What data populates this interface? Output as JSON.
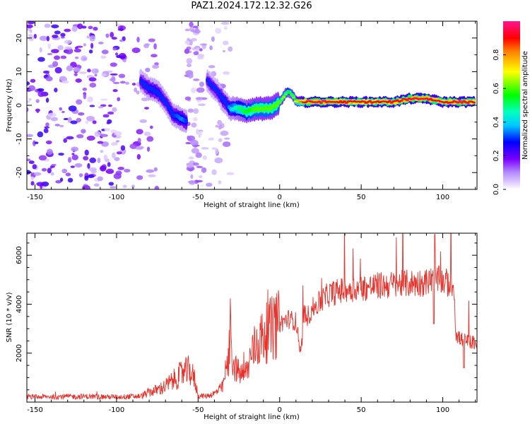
{
  "title": "PAZ1.2024.172.12.32.G26",
  "chart_data": [
    {
      "type": "heatmap",
      "xlabel": "Height of straight line (km)",
      "ylabel": "Frequency (Hz)",
      "xlim": [
        -155,
        121
      ],
      "ylim": [
        -25,
        25
      ],
      "xticks": [
        -150,
        -100,
        -50,
        0,
        50,
        100
      ],
      "yticks": [
        -20,
        -10,
        0,
        10,
        20
      ],
      "colorbar": {
        "label": "Normalized spectral amplitude",
        "ticks": [
          0.0,
          0.2,
          0.4,
          0.6,
          0.8
        ],
        "range": [
          0,
          1
        ],
        "colormap": [
          "#e8d8ff",
          "#7a00ff",
          "#0000ff",
          "#00ffff",
          "#00ff00",
          "#ffff00",
          "#ff0000",
          "#ff1493"
        ]
      },
      "ridge": {
        "x": [
          -85,
          -80,
          -75,
          -70,
          -65,
          -60,
          -57,
          -45,
          -42,
          -38,
          -35,
          -32,
          -30,
          -27,
          -25,
          -20,
          -15,
          -10,
          -5,
          0,
          3,
          5,
          8,
          10,
          15,
          20,
          30,
          40,
          50,
          60,
          70,
          80,
          90,
          100,
          110,
          120
        ],
        "y": [
          7,
          5,
          4,
          1,
          -3,
          -4,
          -5,
          8,
          6,
          4,
          2,
          0,
          -1,
          -1,
          -1,
          -2,
          -1,
          -1,
          -1,
          1,
          3,
          4,
          3,
          1,
          1,
          1,
          1,
          1,
          1,
          1,
          1,
          2,
          2,
          1,
          1,
          1
        ],
        "amplitude": [
          0.25,
          0.3,
          0.3,
          0.25,
          0.3,
          0.35,
          0.3,
          0.2,
          0.25,
          0.25,
          0.3,
          0.3,
          0.4,
          0.45,
          0.5,
          0.55,
          0.6,
          0.6,
          0.6,
          0.6,
          0.65,
          0.55,
          0.6,
          0.7,
          0.9,
          0.95,
          0.95,
          0.9,
          0.9,
          0.9,
          0.9,
          0.95,
          0.95,
          0.9,
          0.95,
          0.9
        ]
      }
    },
    {
      "type": "line",
      "xlabel": "Height of straight line (km)",
      "ylabel": "SNR (10 * v/v)",
      "xlim": [
        -155,
        121
      ],
      "ylim": [
        0,
        6900
      ],
      "xticks": [
        -150,
        -100,
        -50,
        0,
        50,
        100
      ],
      "yticks": [
        2000,
        4000,
        6000
      ],
      "series": [
        {
          "color": "#e8312a",
          "x": [
            -155,
            -140,
            -120,
            -100,
            -85,
            -80,
            -75,
            -70,
            -65,
            -60,
            -55,
            -52,
            -50,
            -45,
            -40,
            -35,
            -33,
            -31,
            -30,
            -29,
            -28,
            -27,
            -25,
            -22,
            -20,
            -18,
            -15,
            -10,
            -5,
            0,
            5,
            10,
            13,
            15,
            17,
            20,
            25,
            30,
            40,
            50,
            60,
            70,
            80,
            90,
            95,
            100,
            105,
            107,
            108,
            110,
            115,
            121
          ],
          "y": [
            200,
            220,
            230,
            210,
            240,
            400,
            500,
            650,
            900,
            1150,
            1300,
            900,
            250,
            250,
            350,
            600,
            1300,
            1700,
            3500,
            1800,
            1500,
            1400,
            1200,
            1100,
            1300,
            1800,
            2300,
            2700,
            3000,
            3200,
            3400,
            3300,
            2000,
            3600,
            3500,
            3800,
            4100,
            4400,
            4600,
            4650,
            4750,
            4800,
            4850,
            4900,
            5000,
            4950,
            4800,
            4700,
            2800,
            2600,
            2500,
            2400
          ]
        }
      ]
    }
  ]
}
